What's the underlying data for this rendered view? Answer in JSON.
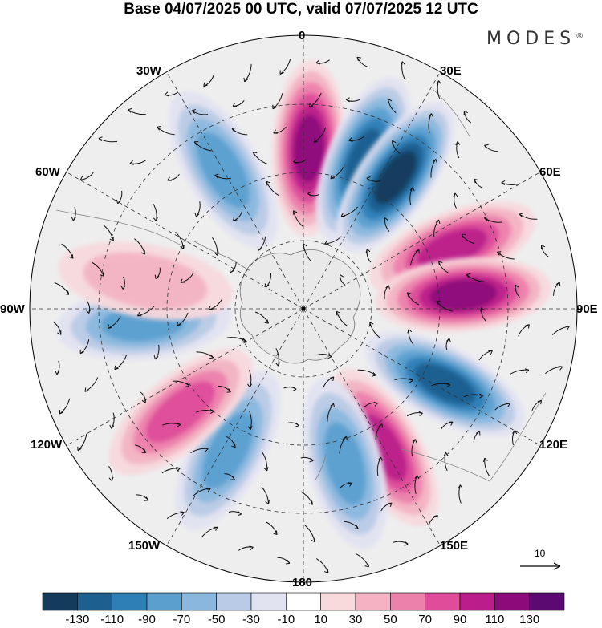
{
  "title": "Base 04/07/2025 00 UTC, valid 07/07/2025 12 UTC",
  "brand": {
    "name": "MODES",
    "mark": "®"
  },
  "map": {
    "projection": "south-polar-stereographic",
    "longitude_labels": {
      "top": "0",
      "top_right": "30E",
      "right_upper": "60E",
      "right": "90E",
      "right_lower": "120E",
      "bottom_right": "150E",
      "bottom": "180",
      "bottom_left": "150W",
      "left_lower": "120W",
      "left": "90W",
      "left_upper": "60W",
      "top_left": "30W"
    },
    "anomaly_centers": [
      {
        "lon": 2,
        "sign": "positive",
        "level": 110
      },
      {
        "lon": 22,
        "sign": "negative",
        "level": -110
      },
      {
        "lon": 35,
        "sign": "negative",
        "level": -130
      },
      {
        "lon": 68,
        "sign": "positive",
        "level": 90
      },
      {
        "lon": 85,
        "sign": "positive",
        "level": 110
      },
      {
        "lon": 118,
        "sign": "negative",
        "level": -110
      },
      {
        "lon": 150,
        "sign": "positive",
        "level": 90
      },
      {
        "lon": 165,
        "sign": "negative",
        "level": -70
      },
      {
        "lon": 208,
        "sign": "negative",
        "level": -70
      },
      {
        "lon": 230,
        "sign": "positive",
        "level": 70
      },
      {
        "lon": 265,
        "sign": "negative",
        "level": -70
      },
      {
        "lon": 280,
        "sign": "positive",
        "level": 30
      },
      {
        "lon": 330,
        "sign": "negative",
        "level": -70
      }
    ]
  },
  "reference_vector": {
    "label": "10"
  },
  "colorbar": {
    "ticks": [
      "-130",
      "-110",
      "-90",
      "-70",
      "-50",
      "-30",
      "-10",
      "10",
      "30",
      "50",
      "70",
      "90",
      "110",
      "130"
    ],
    "colors": [
      "#143a5c",
      "#1d5f8f",
      "#2f7fb7",
      "#5b9fcf",
      "#8ab7de",
      "#b9cbe6",
      "#e1e3f1",
      "#ffffff",
      "#f8d9dc",
      "#f3b3c3",
      "#ec81ac",
      "#de4c9a",
      "#bb1e8a",
      "#8c0a7a",
      "#5a0a70"
    ]
  }
}
